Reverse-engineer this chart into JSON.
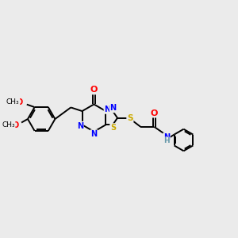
{
  "bg_color": "#ebebeb",
  "atom_colors": {
    "N": "#0000ff",
    "S": "#ccaa00",
    "O": "#ff0000",
    "C": "#000000",
    "H": "#6699aa"
  },
  "bond_color": "#000000",
  "bond_width": 1.4,
  "figsize": [
    3.0,
    3.0
  ],
  "dpi": 100,
  "xlim": [
    0,
    11
  ],
  "ylim": [
    0,
    8
  ]
}
